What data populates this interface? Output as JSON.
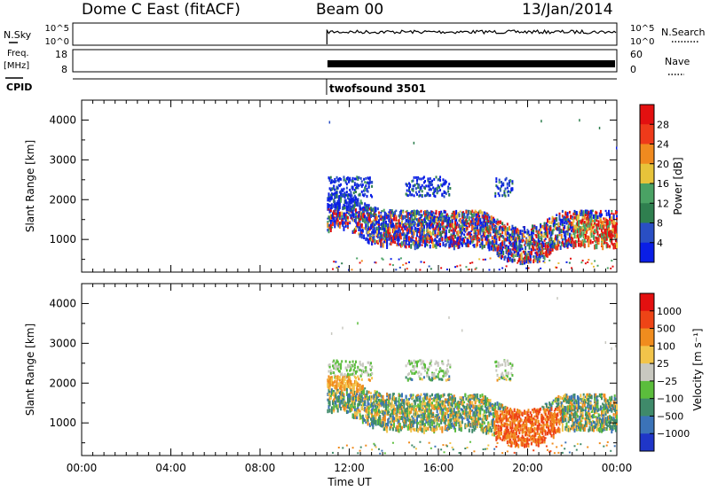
{
  "header": {
    "station": "Dome C East (fitACF)",
    "beam": "Beam 00",
    "date": "13/Jan/2014"
  },
  "top_panels": {
    "nsky_label": "N.Sky",
    "nsky_ticks": [
      "10^5",
      "10^0"
    ],
    "nsearch_label": "N.Search",
    "nsearch_ticks": [
      "10^5",
      "10^0"
    ],
    "freq_label": "Freq.",
    "freq_unit": "[MHz]",
    "freq_ticks": [
      "18",
      "8"
    ],
    "nave_label": "Nave",
    "nave_ticks": [
      "60",
      "0"
    ],
    "cpid_label": "CPID",
    "cpid_value": "twofsound 3501",
    "data_start_hour": 11
  },
  "chart_data": [
    {
      "type": "heatmap",
      "name": "power",
      "ylabel": "Slant Range [km]",
      "xlabel": "Time UT",
      "xlim": [
        0,
        24
      ],
      "ylim": [
        180,
        4500
      ],
      "y_ticks": [
        "1000",
        "2000",
        "3000",
        "4000"
      ],
      "x_ticks": [
        "00:00",
        "04:00",
        "08:00",
        "12:00",
        "16:00",
        "20:00",
        "00:00"
      ],
      "colorbar_label": "Power [dB]",
      "colorbar_ticks": [
        "28",
        "24",
        "20",
        "16",
        "12",
        "8",
        "4"
      ],
      "colorbar_range": [
        0,
        32
      ],
      "colors": [
        "#0a1ee6",
        "#2a4fc4",
        "#2f7f4f",
        "#4aa264",
        "#e7c33a",
        "#f08a1f",
        "#ee3a1a",
        "#e31010"
      ]
    },
    {
      "type": "heatmap",
      "name": "velocity",
      "ylabel": "Slant Range [km]",
      "xlabel": "Time UT",
      "xlim": [
        0,
        24
      ],
      "ylim": [
        180,
        4500
      ],
      "y_ticks": [
        "1000",
        "2000",
        "3000",
        "4000"
      ],
      "x_ticks": [
        "00:00",
        "04:00",
        "08:00",
        "12:00",
        "16:00",
        "20:00",
        "00:00"
      ],
      "colorbar_label": "Velocity [m s⁻¹]",
      "colorbar_ticks": [
        "1000",
        "500",
        "100",
        "25",
        "−25",
        "−100",
        "−500",
        "−1000"
      ],
      "colors": [
        "#1f36c8",
        "#3b73b8",
        "#3f8a6a",
        "#5bbd3c",
        "#c8c8c0",
        "#f2c44a",
        "#f08c1e",
        "#ee4416",
        "#e31010"
      ]
    }
  ]
}
